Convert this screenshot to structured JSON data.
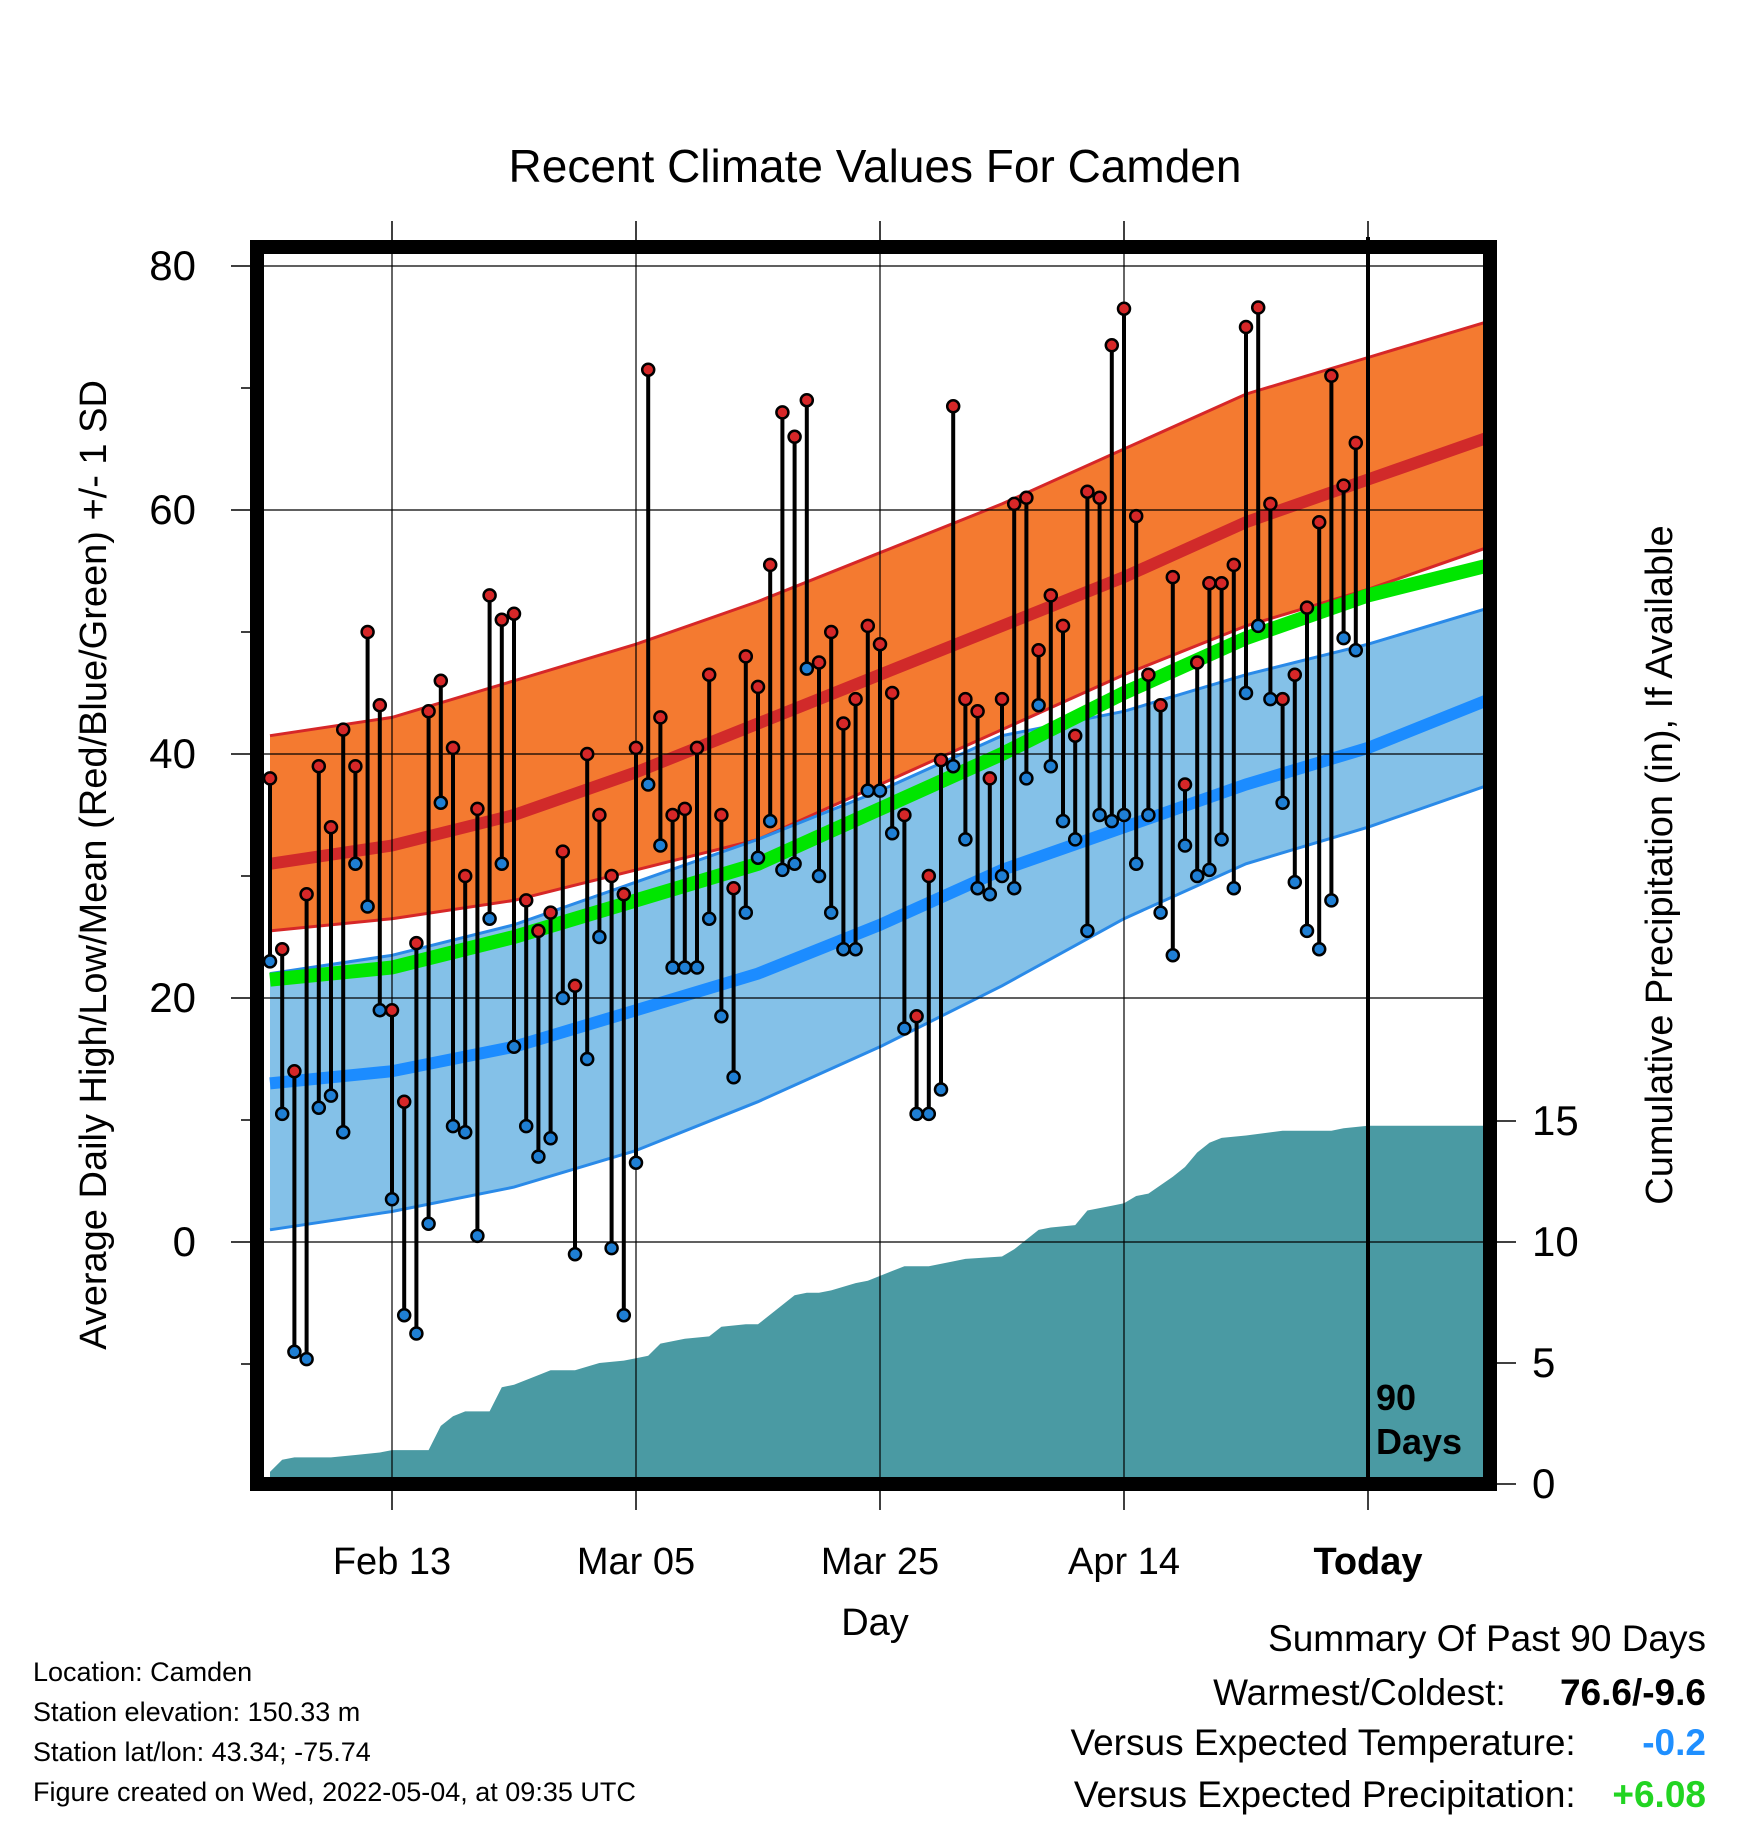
{
  "chart_data": {
    "type": "line",
    "title": "Recent Climate Values For Camden",
    "xlabel": "Day",
    "ylabel": "Average Daily High/Low/Mean (Red/Blue/Green) +/- 1 SD",
    "y2label": "Cumulative Precipitation (in), If Available",
    "ylim": [
      -20,
      82
    ],
    "y2lim": [
      0,
      20
    ],
    "xlim": [
      0,
      100
    ],
    "xticks": [
      {
        "day": 10,
        "label": "Feb 13"
      },
      {
        "day": 30,
        "label": "Mar 05"
      },
      {
        "day": 50,
        "label": "Mar 25"
      },
      {
        "day": 70,
        "label": "Apr 14"
      },
      {
        "day": 90,
        "label": "Today"
      }
    ],
    "yticks": [
      0,
      20,
      40,
      60,
      80
    ],
    "y2ticks": [
      0,
      5,
      10,
      15
    ],
    "today_day": 90,
    "today_label": "90 Days",
    "grid": true,
    "colors": {
      "high_band": "#f47a30",
      "high_edge": "#d62728",
      "high_mean": "#d12a2a",
      "overlap": "#9a1012",
      "low_band": "#84c1e8",
      "low_edge": "#2a8ae8",
      "low_mean": "#1c8cff",
      "mean": "#00e600",
      "precip": "#4a9aa3",
      "high_dot": "#d62728",
      "low_dot": "#1f7fd4"
    },
    "normals_days": [
      0,
      10,
      20,
      30,
      40,
      50,
      60,
      70,
      80,
      90,
      100
    ],
    "normal_high": [
      31,
      32.5,
      35,
      38.5,
      42.5,
      46.5,
      50.5,
      54.5,
      59,
      62.5,
      66
    ],
    "high_sd_upper": [
      41.5,
      43,
      46,
      49,
      52.5,
      56.5,
      60.5,
      65,
      69.5,
      72.5,
      75.5
    ],
    "high_sd_lower": [
      25.5,
      26.5,
      28,
      30.5,
      33,
      37.5,
      42,
      46.5,
      50.5,
      53.5,
      57
    ],
    "normal_low": [
      13,
      14,
      16,
      19,
      22,
      26,
      30.5,
      34,
      37.5,
      40.5,
      44.5
    ],
    "low_sd_upper": [
      22,
      23.5,
      26,
      29.5,
      33,
      37,
      41.5,
      43.5,
      46.5,
      49,
      52
    ],
    "low_sd_lower": [
      1,
      2.5,
      4.5,
      7.5,
      11.5,
      16,
      21,
      26.5,
      31,
      34,
      37.5
    ],
    "normal_mean": [
      21.5,
      22.5,
      25,
      28,
      31,
      35.5,
      40,
      45,
      49.5,
      53,
      55.5
    ],
    "series": [
      {
        "name": "High",
        "values": [
          38,
          24,
          14,
          28.5,
          39,
          34,
          42,
          39,
          50,
          44,
          19,
          11.5,
          24.5,
          43.5,
          46,
          40.5,
          30,
          35.5,
          53,
          51,
          51.5,
          28,
          25.5,
          27,
          32,
          21,
          40,
          35,
          30,
          28.5,
          40.5,
          71.5,
          43,
          35,
          35.5,
          40.5,
          46.5,
          35,
          29,
          48,
          45.5,
          55.5,
          68,
          66,
          69,
          47.5,
          50,
          42.5,
          44.5,
          50.5,
          49,
          45,
          35,
          18.5,
          30,
          39.5,
          68.5,
          44.5,
          43.5,
          38,
          44.5,
          60.5,
          61,
          48.5,
          53,
          50.5,
          41.5,
          61.5,
          61,
          73.5,
          76.5,
          59.5,
          46.5,
          44,
          54.5,
          37.5,
          47.5,
          54,
          54,
          55.5,
          75,
          76.6,
          60.5,
          44.5,
          46.5,
          52,
          59,
          71,
          62,
          65.5
        ]
      },
      {
        "name": "Low",
        "values": [
          23,
          10.5,
          -9,
          -9.6,
          11,
          12,
          9,
          31,
          27.5,
          19,
          3.5,
          -6,
          -7.5,
          1.5,
          36,
          9.5,
          9,
          0.5,
          26.5,
          31,
          16,
          9.5,
          7,
          8.5,
          20,
          -1,
          15,
          25,
          -0.5,
          -6,
          6.5,
          37.5,
          32.5,
          22.5,
          22.5,
          22.5,
          26.5,
          18.5,
          13.5,
          27,
          31.5,
          34.5,
          30.5,
          31,
          47,
          30,
          27,
          24,
          24,
          37,
          37,
          33.5,
          17.5,
          10.5,
          10.5,
          12.5,
          39,
          33,
          29,
          28.5,
          30,
          29,
          38,
          44,
          39,
          34.5,
          33,
          25.5,
          35,
          34.5,
          35,
          31,
          35,
          27,
          23.5,
          32.5,
          30,
          30.5,
          33,
          29,
          45,
          50.5,
          44.5,
          36,
          29.5,
          25.5,
          24,
          28,
          49.5,
          48.5
        ]
      },
      {
        "name": "Cumulative Precipitation",
        "days": [
          0,
          1,
          2,
          5,
          7,
          9,
          10,
          13,
          14,
          15,
          16,
          18,
          19,
          20,
          22,
          23,
          25,
          27,
          29,
          30,
          31,
          32,
          34,
          36,
          37,
          39,
          40,
          43,
          44,
          45,
          46,
          48,
          49,
          51,
          52,
          53,
          54,
          56,
          57,
          60,
          61,
          63,
          64,
          66,
          67,
          68,
          69,
          70,
          71,
          72,
          74,
          75,
          76,
          77,
          78,
          80,
          83,
          86,
          87,
          88,
          90,
          100
        ],
        "values": [
          0.5,
          1,
          1.1,
          1.1,
          1.2,
          1.3,
          1.4,
          1.4,
          2.4,
          2.8,
          3,
          3,
          4,
          4.1,
          4.5,
          4.7,
          4.7,
          5,
          5.1,
          5.2,
          5.3,
          5.8,
          6,
          6.1,
          6.5,
          6.6,
          6.6,
          7.8,
          7.9,
          7.9,
          8,
          8.3,
          8.4,
          8.8,
          9,
          9,
          9,
          9.2,
          9.3,
          9.4,
          9.7,
          10.5,
          10.6,
          10.7,
          11.3,
          11.4,
          11.5,
          11.6,
          11.9,
          12,
          12.7,
          13.1,
          13.7,
          14.1,
          14.3,
          14.4,
          14.6,
          14.6,
          14.6,
          14.7,
          14.8,
          14.8
        ]
      }
    ]
  },
  "footer": {
    "location": "Location: Camden",
    "elevation": "Station elevation: 150.33 m",
    "latlon": "Station lat/lon: 43.34; -75.74",
    "created": "Figure created on Wed, 2022-05-04, at 09:35 UTC"
  },
  "summary": {
    "heading": "Summary Of Past 90 Days",
    "warmest_label": "Warmest/Coldest:",
    "warmest_value": "76.6/-9.6",
    "temp_label": "Versus Expected Temperature:",
    "temp_value": "-0.2",
    "temp_color": "#1f8fff",
    "precip_label": "Versus Expected Precipitation:",
    "precip_value": "+6.08",
    "precip_color": "#22d422"
  }
}
